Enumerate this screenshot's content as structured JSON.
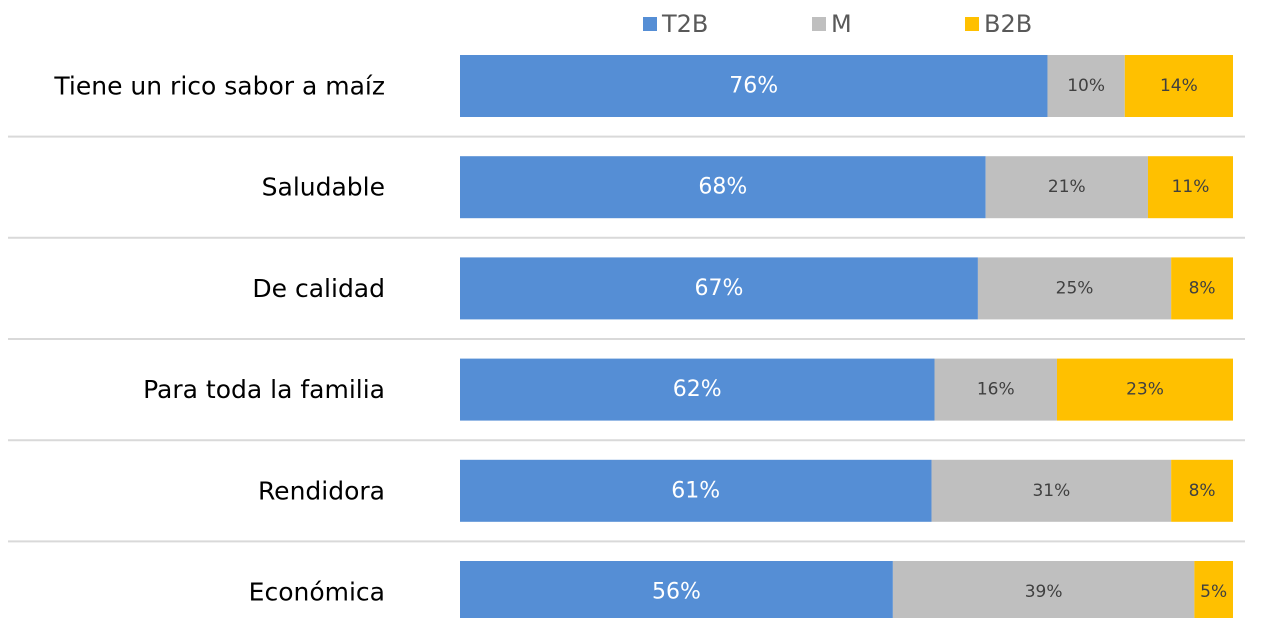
{
  "chart_data": {
    "type": "bar",
    "orientation": "horizontal",
    "stacking": "percent",
    "categories": [
      "Tiene un rico sabor a maíz",
      "Saludable",
      "De calidad",
      "Para toda la familia",
      "Rendidora",
      "Económica"
    ],
    "series": [
      {
        "name": "T2B",
        "color": "#558ed5",
        "values": [
          76,
          68,
          67,
          62,
          61,
          56
        ],
        "value_labels": [
          "76%",
          "68%",
          "67%",
          "62%",
          "61%",
          "56%"
        ]
      },
      {
        "name": "M",
        "color": "#bfbfbf",
        "values": [
          10,
          21,
          25,
          16,
          31,
          39
        ],
        "value_labels": [
          "10%",
          "21%",
          "25%",
          "16%",
          "31%",
          "39%"
        ]
      },
      {
        "name": "B2B",
        "color": "#ffc000",
        "values": [
          14,
          11,
          8,
          23,
          8,
          5
        ],
        "value_labels": [
          "14%",
          "11%",
          "8%",
          "23%",
          "8%",
          "5%"
        ]
      }
    ],
    "legend": "top"
  }
}
